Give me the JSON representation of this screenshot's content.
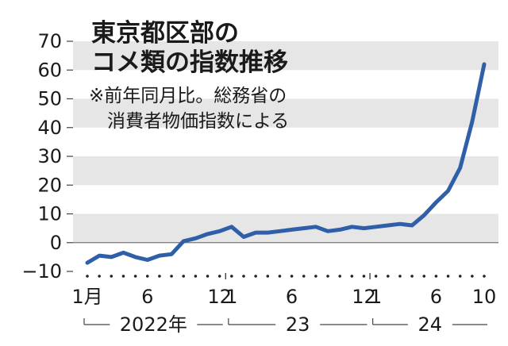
{
  "chart_data": {
    "type": "line",
    "title_lines": [
      "東京都区部の",
      "コメ類の指数推移"
    ],
    "note_lines": [
      "※前年同月比。総務省の",
      "消費者物価指数による"
    ],
    "ylim": [
      -10,
      70
    ],
    "yticks": [
      "−10",
      "0",
      "10",
      "20",
      "30",
      "40",
      "50",
      "60",
      "70"
    ],
    "grid": "alternating horizontal bands",
    "line_color": "#2f5fa8",
    "band_color": "#e6e6e6",
    "x_tick_labels": [
      {
        "index": 0,
        "label": "1月"
      },
      {
        "index": 5,
        "label": "6"
      },
      {
        "index": 11,
        "label": "12"
      },
      {
        "index": 12,
        "label": "1"
      },
      {
        "index": 17,
        "label": "6"
      },
      {
        "index": 23,
        "label": "12"
      },
      {
        "index": 24,
        "label": "1"
      },
      {
        "index": 29,
        "label": "6"
      },
      {
        "index": 33,
        "label": "10"
      }
    ],
    "year_groups": [
      {
        "label": "2022年",
        "start": 0,
        "end": 11
      },
      {
        "label": "23",
        "start": 12,
        "end": 23
      },
      {
        "label": "24",
        "start": 24,
        "end": 33
      }
    ],
    "series": [
      {
        "x": [
          "2022-01",
          "2022-02",
          "2022-03",
          "2022-04",
          "2022-05",
          "2022-06",
          "2022-07",
          "2022-08",
          "2022-09",
          "2022-10",
          "2022-11",
          "2022-12",
          "2023-01",
          "2023-02",
          "2023-03",
          "2023-04",
          "2023-05",
          "2023-06",
          "2023-07",
          "2023-08",
          "2023-09",
          "2023-10",
          "2023-11",
          "2023-12",
          "2024-01",
          "2024-02",
          "2024-03",
          "2024-04",
          "2024-05",
          "2024-06",
          "2024-07",
          "2024-08",
          "2024-09",
          "2024-10"
        ],
        "values": [
          -7,
          -4.5,
          -5,
          -3.5,
          -5,
          -6,
          -4.5,
          -4,
          0.5,
          1.5,
          3,
          4,
          5.5,
          2,
          3.5,
          3.5,
          4,
          4.5,
          5,
          5.5,
          4,
          4.5,
          5.5,
          5,
          5.5,
          6,
          6.5,
          6,
          9.5,
          14,
          18,
          26,
          42,
          62
        ]
      }
    ]
  }
}
